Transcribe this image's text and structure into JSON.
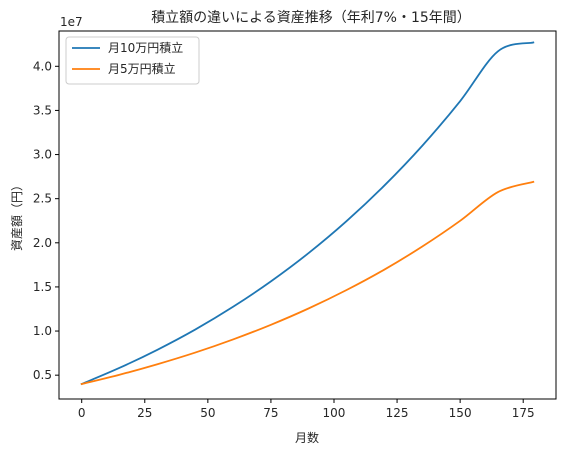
{
  "chart_data": {
    "type": "line",
    "title": "積立額の違いによる資産推移（年利7%・15年間）",
    "xlabel": "月数",
    "ylabel": "資産額（円）",
    "y_scale_label": "1e7",
    "xlim": [
      -9,
      188
    ],
    "ylim": [
      2300000,
      44000000
    ],
    "x_ticks": [
      0,
      25,
      50,
      75,
      100,
      125,
      150,
      175
    ],
    "y_ticks": [
      5000000,
      10000000,
      15000000,
      20000000,
      25000000,
      30000000,
      35000000,
      40000000
    ],
    "y_tick_labels": [
      "0.5",
      "1.0",
      "1.5",
      "2.0",
      "2.5",
      "3.0",
      "3.5",
      "4.0"
    ],
    "grid": false,
    "legend_position": "top-left",
    "series": [
      {
        "name": "月10万円積立",
        "color": "#1f77b4",
        "x": [
          0,
          15,
          30,
          45,
          60,
          75,
          90,
          105,
          120,
          135,
          150,
          165,
          179
        ],
        "values": [
          4000000,
          5830000,
          7880000,
          10170000,
          12750000,
          15630000,
          18850000,
          22460000,
          26500000,
          31000000,
          36050000,
          41700000,
          42700000
        ]
      },
      {
        "name": "月5万円積立",
        "color": "#ff7f0e",
        "x": [
          0,
          15,
          30,
          45,
          60,
          75,
          90,
          105,
          120,
          135,
          150,
          165,
          179
        ],
        "values": [
          4000000,
          5050000,
          6240000,
          7560000,
          9050000,
          10710000,
          12570000,
          14650000,
          16970000,
          19580000,
          22490000,
          25750000,
          26900000
        ]
      }
    ]
  }
}
